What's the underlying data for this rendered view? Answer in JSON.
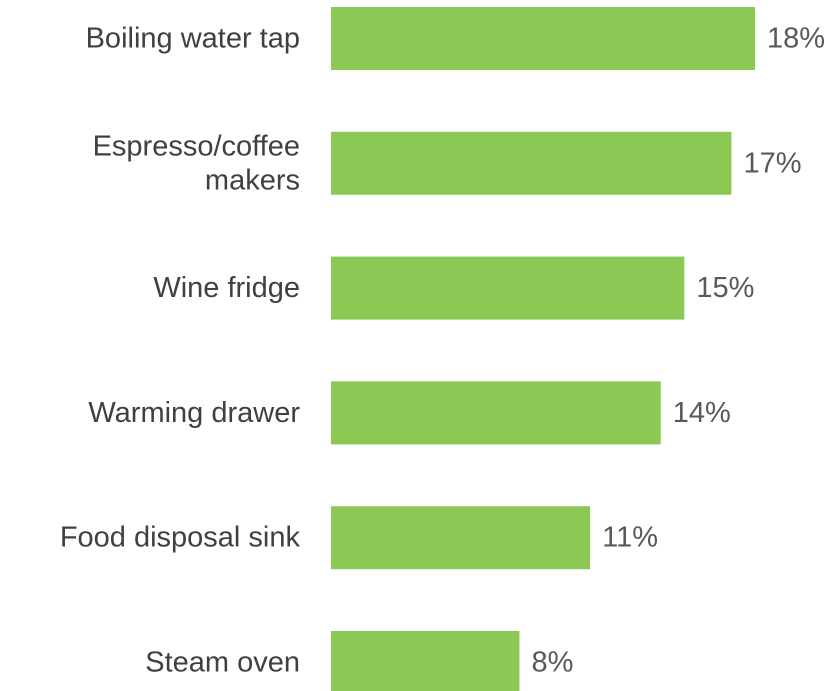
{
  "chart_data": {
    "type": "bar",
    "orientation": "horizontal",
    "categories": [
      [
        "Boiling water tap"
      ],
      [
        "Espresso/coffee",
        "makers"
      ],
      [
        "Wine fridge"
      ],
      [
        "Warming drawer"
      ],
      [
        "Food disposal sink"
      ],
      [
        "Steam oven"
      ]
    ],
    "values": [
      18,
      17,
      15,
      14,
      11,
      8
    ],
    "value_labels": [
      "18%",
      "17%",
      "15%",
      "14%",
      "11%",
      "8%"
    ],
    "value_unit": "%",
    "xlim": [
      0,
      18
    ],
    "grid": false,
    "legend": "none",
    "colors": {
      "bar": "#8cc954",
      "category_text": "#404040",
      "value_text": "#595959"
    }
  }
}
